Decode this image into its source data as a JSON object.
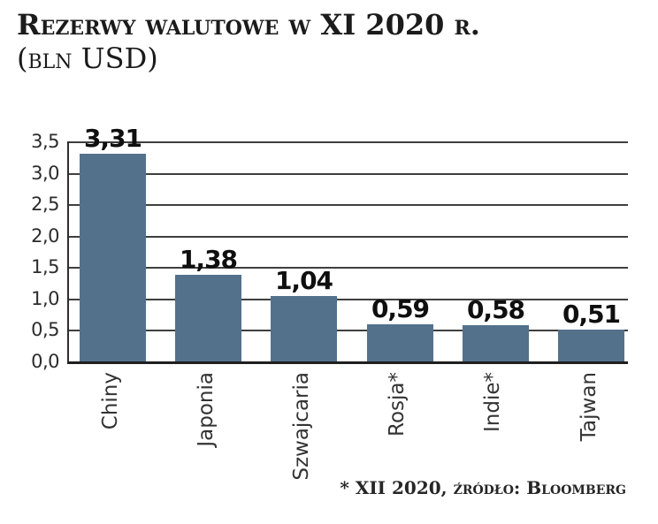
{
  "header": {
    "title": "Rezerwy walutowe w XI 2020 r.",
    "subtitle": "(bln USD)"
  },
  "footer": {
    "source_note": "* XII 2020, źródło: Bloomberg"
  },
  "colors": {
    "bar": "#53718b",
    "gridline": "#3f3f3f",
    "axis": "#2e2e2e",
    "text": "#1b1b1b"
  },
  "chart_data": {
    "type": "bar",
    "title": "Rezerwy walutowe w XI 2020 r.",
    "subtitle": "(bln USD)",
    "categories": [
      "Chiny",
      "Japonia",
      "Szwajcaria",
      "Rosja*",
      "Indie*",
      "Tajwan"
    ],
    "values": [
      3.31,
      1.38,
      1.04,
      0.59,
      0.58,
      0.51
    ],
    "value_labels": [
      "3,31",
      "1,38",
      "1,04",
      "0,59",
      "0,58",
      "0,51"
    ],
    "xlabel": "",
    "ylabel": "",
    "ylim": [
      0,
      3.5
    ],
    "ytick_step": 0.5,
    "yticks_top_to_bottom": [
      "3,5",
      "3,0",
      "2,5",
      "2,0",
      "1,5",
      "1,0",
      "0,5",
      "0,0"
    ],
    "grid": true,
    "legend_position": "none",
    "annotation": "* XII 2020, źródło: Bloomberg"
  }
}
